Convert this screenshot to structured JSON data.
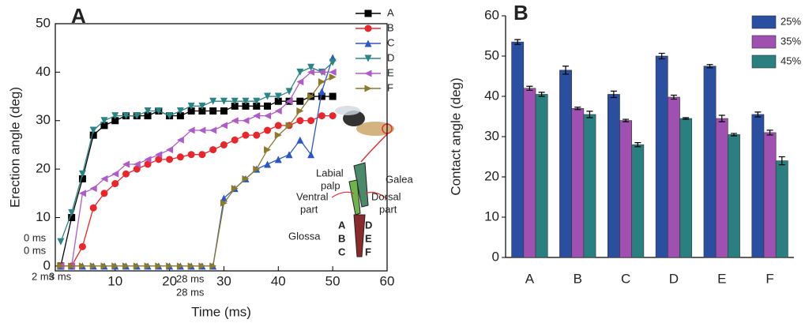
{
  "chart_data": [
    {
      "type": "line",
      "panel": "A",
      "xlabel": "Time (ms)",
      "ylabel": "Erection angle (deg)",
      "xlim": [
        -1,
        60
      ],
      "ylim": [
        -1,
        50
      ],
      "xticks": [
        10,
        20,
        30,
        40,
        50,
        60
      ],
      "yticks": [
        0,
        10,
        20,
        30,
        40,
        50
      ],
      "x": [
        0,
        2,
        4,
        6,
        8,
        10,
        12,
        14,
        16,
        18,
        20,
        22,
        24,
        26,
        28,
        30,
        32,
        34,
        36,
        38,
        40,
        42,
        44,
        46,
        48,
        50
      ],
      "series": [
        {
          "name": "A",
          "color": "#000000",
          "marker": "square",
          "values": [
            0,
            10,
            18,
            27,
            29,
            30,
            31,
            31,
            31,
            32,
            31,
            31,
            32,
            32,
            32,
            32,
            33,
            33,
            33,
            33,
            34,
            34,
            34,
            35,
            35,
            35
          ]
        },
        {
          "name": "B",
          "color": "#e8262b",
          "marker": "circle",
          "values": [
            0,
            0,
            4,
            12,
            15,
            17,
            19,
            20,
            21,
            22,
            22,
            22.5,
            23,
            23,
            24,
            25,
            26,
            27,
            27,
            28,
            29,
            29,
            30,
            30,
            31,
            31
          ]
        },
        {
          "name": "C",
          "color": "#2a56c6",
          "marker": "triangle-up",
          "values": [
            0,
            0,
            0,
            0,
            0,
            0,
            0,
            0,
            0,
            0,
            0,
            0,
            0,
            0,
            0,
            14,
            16,
            18,
            20,
            21,
            22,
            23,
            26,
            23,
            36,
            43
          ]
        },
        {
          "name": "D",
          "color": "#2a8585",
          "marker": "triangle-down",
          "values": [
            5,
            11,
            19,
            28,
            30,
            31,
            31,
            31,
            32,
            32,
            31,
            32,
            33,
            33,
            34,
            34,
            34,
            34,
            34,
            35,
            35,
            36,
            40,
            41,
            40,
            42
          ]
        },
        {
          "name": "E",
          "color": "#b05cc8",
          "marker": "triangle-left",
          "values": [
            0,
            0,
            15,
            16,
            18,
            19,
            21,
            21,
            22,
            23,
            24,
            26,
            28,
            28,
            28,
            29,
            30,
            30,
            31,
            31,
            32,
            34,
            38,
            40,
            40,
            40
          ]
        },
        {
          "name": "F",
          "color": "#8a7a2a",
          "marker": "triangle-right",
          "values": [
            0,
            0,
            0,
            0,
            0,
            0,
            0,
            0,
            0,
            0,
            0,
            0,
            0,
            0,
            0,
            13,
            16,
            18,
            20,
            24,
            27,
            29,
            32,
            35,
            38,
            39
          ]
        }
      ],
      "annotations": [
        "0 ms",
        "0 ms",
        "2 ms",
        "3 ms",
        "28 ms",
        "28 ms"
      ],
      "inset_labels": [
        "Labial",
        "palp",
        "Galea",
        "Ventral",
        "part",
        "Dorsal",
        "part",
        "Glossa"
      ]
    },
    {
      "type": "bar",
      "panel": "B",
      "ylabel": "Contact angle (deg)",
      "categories": [
        "A",
        "B",
        "C",
        "D",
        "E",
        "F"
      ],
      "ylim": [
        0,
        60
      ],
      "yticks": [
        0,
        10,
        20,
        30,
        40,
        50,
        60
      ],
      "series": [
        {
          "name": "25%",
          "color": "#2a4fa0",
          "values": [
            53.5,
            46.5,
            40.5,
            50,
            47.5,
            35.5
          ],
          "errors": [
            0.6,
            1,
            0.8,
            0.7,
            0.4,
            0.6
          ]
        },
        {
          "name": "35%",
          "color": "#a050b0",
          "values": [
            42,
            37,
            34,
            39.8,
            34.5,
            31
          ],
          "errors": [
            0.5,
            0.3,
            0.3,
            0.5,
            0.8,
            0.6
          ]
        },
        {
          "name": "45%",
          "color": "#2a8080",
          "values": [
            40.5,
            35.5,
            28,
            34.5,
            30.5,
            24
          ],
          "errors": [
            0.5,
            0.8,
            0.5,
            0.2,
            0.3,
            1
          ]
        }
      ]
    }
  ]
}
